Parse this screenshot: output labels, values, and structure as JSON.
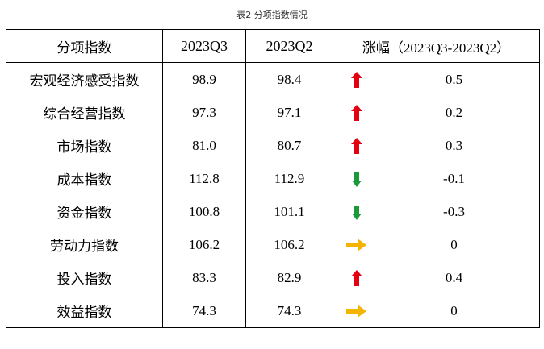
{
  "caption": "表2  分项指数情况",
  "headers": {
    "name": "分项指数",
    "q3": "2023Q3",
    "q2": "2023Q2",
    "change_cn": "涨幅",
    "change_latin": "（2023Q3-2023Q2）"
  },
  "colors": {
    "up": "#e3000f",
    "down": "#1a9a3a",
    "flat": "#f5b400"
  },
  "rows": [
    {
      "name": "宏观经济感受指数",
      "q3": "98.9",
      "q2": "98.4",
      "trend": "up-arrow-icon",
      "change": "0.5"
    },
    {
      "name": "综合经营指数",
      "q3": "97.3",
      "q2": "97.1",
      "trend": "up-arrow-icon",
      "change": "0.2"
    },
    {
      "name": "市场指数",
      "q3": "81.0",
      "q2": "80.7",
      "trend": "up-arrow-icon",
      "change": "0.3"
    },
    {
      "name": "成本指数",
      "q3": "112.8",
      "q2": "112.9",
      "trend": "down-arrow-icon",
      "change": "-0.1"
    },
    {
      "name": "资金指数",
      "q3": "100.8",
      "q2": "101.1",
      "trend": "down-arrow-icon",
      "change": "-0.3"
    },
    {
      "name": "劳动力指数",
      "q3": "106.2",
      "q2": "106.2",
      "trend": "right-arrow-icon",
      "change": "0"
    },
    {
      "name": "投入指数",
      "q3": "83.3",
      "q2": "82.9",
      "trend": "up-arrow-icon",
      "change": "0.4"
    },
    {
      "name": "效益指数",
      "q3": "74.3",
      "q2": "74.3",
      "trend": "right-arrow-icon",
      "change": "0"
    }
  ]
}
